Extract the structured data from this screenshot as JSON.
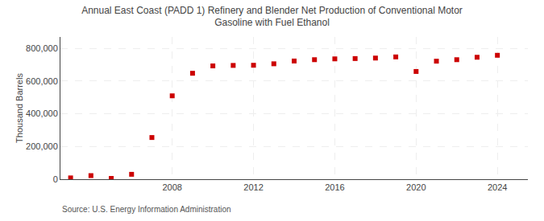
{
  "chart_data": {
    "type": "scatter",
    "title": "Annual East Coast (PADD 1) Refinery and Blender Net Production of Conventional Motor\nGasoline with Fuel Ethanol",
    "ylabel": "Thousand Barrels",
    "annotations": [
      "Source: U.S. Energy Information Administration"
    ],
    "x": [
      2003,
      2004,
      2005,
      2006,
      2007,
      2008,
      2009,
      2010,
      2011,
      2012,
      2013,
      2014,
      2015,
      2016,
      2017,
      2018,
      2019,
      2020,
      2021,
      2022,
      2023,
      2024
    ],
    "values": [
      8000,
      22000,
      5000,
      30000,
      255000,
      510000,
      648000,
      693000,
      696000,
      697000,
      706000,
      723000,
      731000,
      736000,
      738000,
      741000,
      748000,
      659000,
      722000,
      731000,
      746000,
      758000
    ],
    "color": "#cc0000",
    "marker": "square",
    "xlim": [
      2002.5,
      2025.5
    ],
    "xticks": [
      2008,
      2012,
      2016,
      2020,
      2024
    ],
    "ylim": [
      0,
      870000
    ],
    "yticks": [
      0,
      {
        "value": 200000,
        "label": "200,000"
      },
      {
        "value": 400000,
        "label": "400,000"
      },
      {
        "value": 600000,
        "label": "600,000"
      },
      {
        "value": 800000,
        "label": "800,000"
      }
    ],
    "grid": true
  }
}
